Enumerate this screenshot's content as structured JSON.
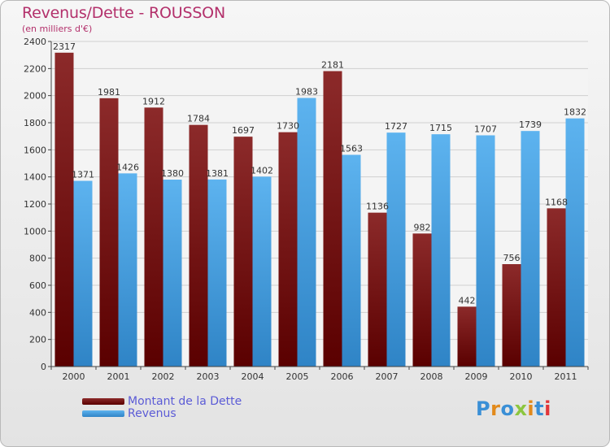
{
  "chart_data": {
    "type": "bar",
    "title": "Revenus/Dette - ROUSSON",
    "subtitle": "(en milliers d'€)",
    "categories": [
      "2000",
      "2001",
      "2002",
      "2003",
      "2004",
      "2005",
      "2006",
      "2007",
      "2008",
      "2009",
      "2010",
      "2011"
    ],
    "series": [
      {
        "name": "Montant de la Dette",
        "values": [
          2317,
          1981,
          1912,
          1784,
          1697,
          1730,
          2181,
          1136,
          982,
          442,
          756,
          1168
        ],
        "color": "#7a1616"
      },
      {
        "name": "Revenus",
        "values": [
          1371,
          1426,
          1380,
          1381,
          1402,
          1983,
          1563,
          1727,
          1715,
          1707,
          1739,
          1832
        ],
        "color": "#4ea5e4"
      }
    ],
    "yticks": [
      0,
      200,
      400,
      600,
      800,
      1000,
      1200,
      1400,
      1600,
      1800,
      2000,
      2200,
      2400
    ],
    "ylim": [
      0,
      2400
    ],
    "grid": true,
    "legend_position": "bottom-left"
  },
  "brand": {
    "logo_letters": [
      "P",
      "r",
      "o",
      "x",
      "i",
      "t",
      "i"
    ],
    "logo_colors": [
      "#3a8fd6",
      "#e28a1c",
      "#3a8fd6",
      "#8cc63f",
      "#e28a1c",
      "#3a8fd6",
      "#e2363a"
    ]
  }
}
